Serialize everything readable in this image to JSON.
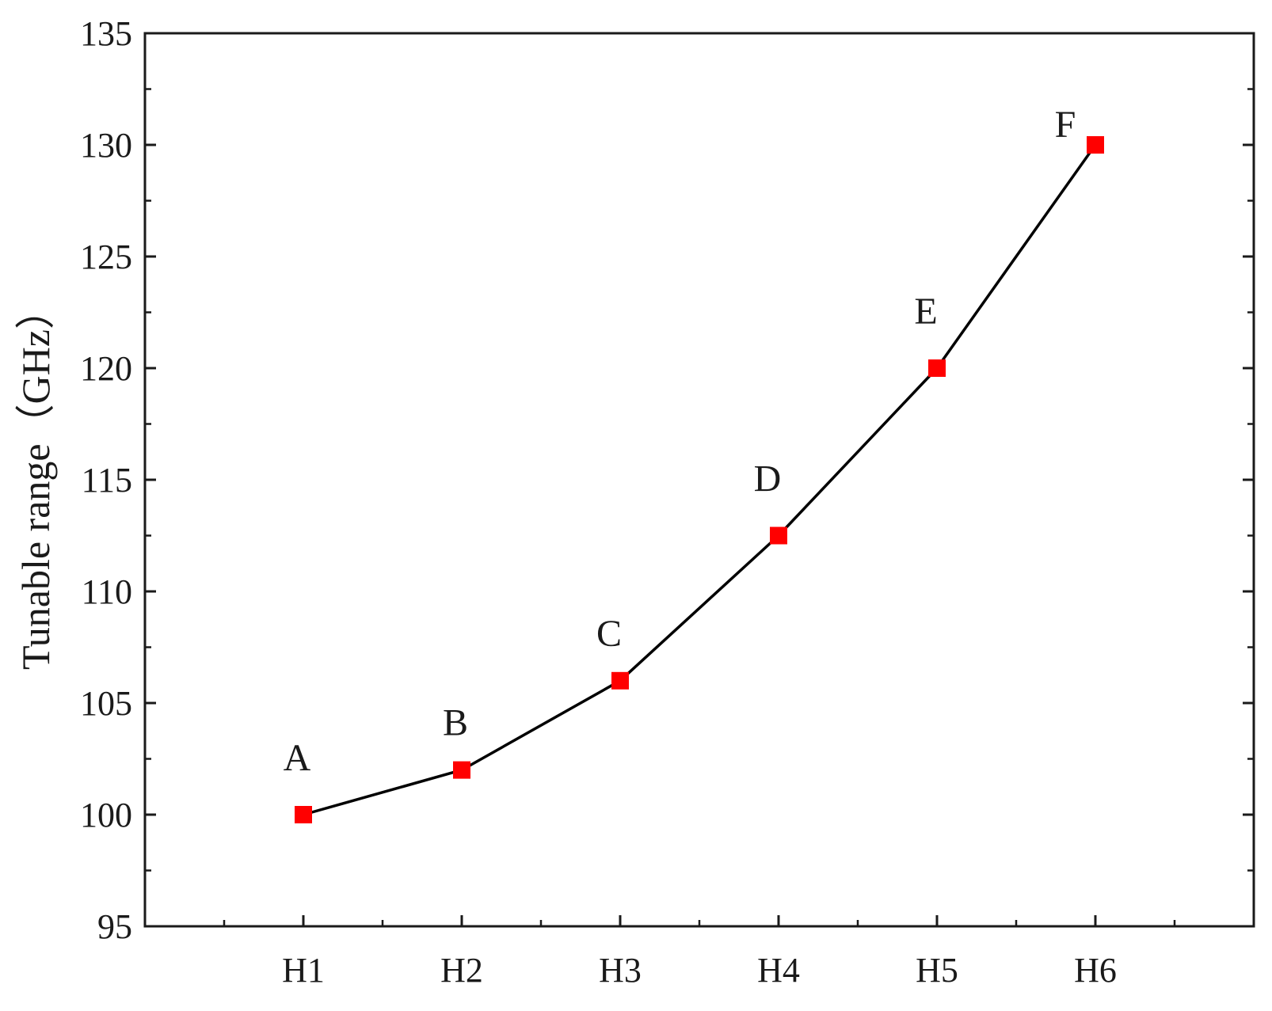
{
  "chart_data": {
    "type": "line",
    "title": "",
    "xlabel": "",
    "ylabel": "Tunable range（GHz）",
    "categories": [
      "H1",
      "H2",
      "H3",
      "H4",
      "H5",
      "H6"
    ],
    "series": [
      {
        "values": [
          100,
          102,
          106,
          112.5,
          120,
          130
        ],
        "point_labels": [
          "A",
          "B",
          "C",
          "D",
          "E",
          "F"
        ],
        "line_color": "#000000",
        "marker": "square",
        "marker_color": "#ff0000"
      }
    ],
    "ylim": [
      95,
      135
    ],
    "yticks": [
      95,
      100,
      105,
      110,
      115,
      120,
      125,
      130,
      135
    ],
    "yticks_minor_step": 2.5,
    "x_minor_ticks": "between categories",
    "grid": false,
    "legend": "none"
  }
}
